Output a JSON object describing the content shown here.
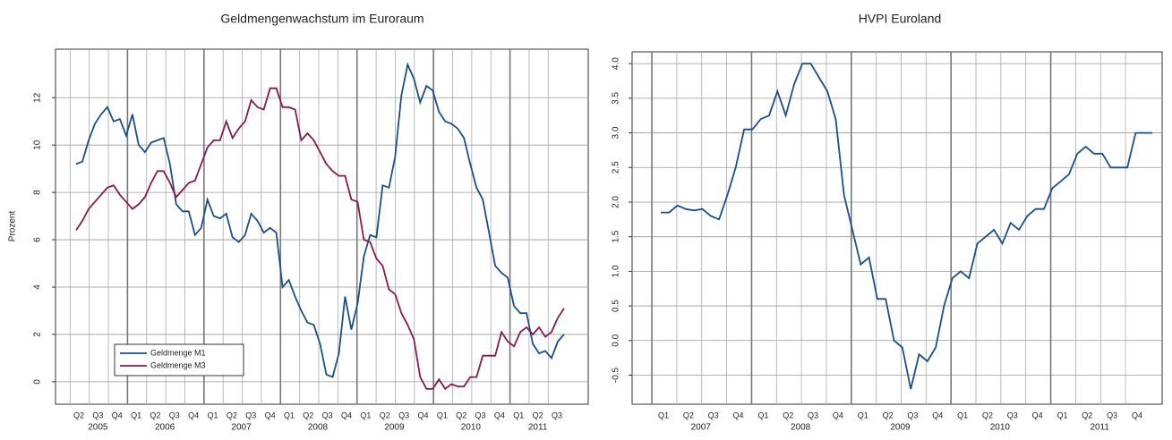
{
  "chart_data": [
    {
      "type": "line",
      "title": "Geldmengenwachstum im Euroraum",
      "y_label": "Prozent",
      "quarters": [
        "Q2",
        "Q3",
        "Q4",
        "Q1",
        "Q2",
        "Q3",
        "Q4",
        "Q1",
        "Q2",
        "Q3",
        "Q4",
        "Q1",
        "Q2",
        "Q3",
        "Q4",
        "Q1",
        "Q2",
        "Q3",
        "Q4",
        "Q1",
        "Q2",
        "Q3",
        "Q4",
        "Q1",
        "Q2",
        "Q3"
      ],
      "years": [
        "2005",
        "2006",
        "2007",
        "2008",
        "2009",
        "2010",
        "2011"
      ],
      "series": [
        {
          "name": "Geldmenge M1",
          "color": "#1a4f8a",
          "values": [
            9.2,
            9.3,
            10.2,
            10.9,
            11.3,
            11.6,
            11.0,
            11.1,
            10.4,
            11.3,
            10.0,
            9.7,
            10.1,
            10.2,
            10.3,
            9.2,
            7.5,
            7.2,
            7.2,
            6.2,
            6.5,
            7.7,
            7.0,
            6.9,
            7.1,
            6.1,
            5.9,
            6.2,
            7.1,
            6.8,
            6.3,
            6.5,
            6.3,
            4.0,
            4.3,
            3.6,
            3.0,
            2.5,
            2.4,
            1.6,
            0.3,
            0.2,
            1.2,
            3.6,
            2.2,
            3.3,
            5.3,
            6.2,
            6.1,
            8.3,
            8.2,
            9.5,
            12.1,
            13.4,
            12.8,
            11.8,
            12.5,
            12.3,
            11.4,
            11.0,
            10.9,
            10.7,
            10.3,
            9.2,
            8.2,
            7.7,
            6.3,
            4.9,
            4.6,
            4.4,
            3.2,
            2.9,
            2.9,
            1.6,
            1.2,
            1.3,
            1.0,
            1.7,
            2.0
          ]
        },
        {
          "name": "Geldmenge M3",
          "color": "#8b1a4a",
          "values": [
            6.4,
            6.8,
            7.3,
            7.6,
            7.9,
            8.2,
            8.3,
            7.9,
            7.6,
            7.3,
            7.5,
            7.8,
            8.4,
            8.9,
            8.9,
            8.4,
            7.8,
            8.1,
            8.4,
            8.5,
            9.2,
            9.9,
            10.2,
            10.2,
            11.0,
            10.3,
            10.7,
            11.0,
            11.9,
            11.6,
            11.5,
            12.4,
            12.4,
            11.6,
            11.6,
            11.5,
            10.2,
            10.5,
            10.2,
            9.7,
            9.2,
            8.9,
            8.7,
            8.7,
            7.7,
            7.6,
            6.0,
            5.9,
            5.2,
            4.9,
            3.9,
            3.7,
            2.9,
            2.4,
            1.8,
            0.2,
            -0.3,
            -0.3,
            0.1,
            -0.3,
            -0.1,
            -0.2,
            -0.2,
            0.2,
            0.2,
            1.1,
            1.1,
            1.1,
            2.1,
            1.7,
            1.5,
            2.1,
            2.3,
            2.0,
            2.3,
            1.9,
            2.1,
            2.7,
            3.1
          ]
        }
      ],
      "ylim": [
        -0.95,
        14.05
      ],
      "yticks": [
        0,
        2,
        4,
        6,
        8,
        10,
        12
      ],
      "grid": true,
      "legend": "lower left"
    },
    {
      "type": "line",
      "title": "HVPI Euroland",
      "quarters": [
        "Q1",
        "Q2",
        "Q3",
        "Q4",
        "Q1",
        "Q2",
        "Q3",
        "Q4",
        "Q1",
        "Q2",
        "Q3",
        "Q4",
        "Q1",
        "Q2",
        "Q3",
        "Q4",
        "Q1",
        "Q2",
        "Q3",
        "Q4"
      ],
      "years": [
        "2007",
        "2008",
        "2009",
        "2010",
        "2011"
      ],
      "color": "#1a4f8a",
      "values": [
        1.85,
        1.85,
        1.95,
        1.9,
        1.88,
        1.9,
        1.8,
        1.75,
        2.1,
        2.5,
        3.05,
        3.05,
        3.2,
        3.25,
        3.6,
        3.25,
        3.7,
        4.0,
        4.0,
        3.8,
        3.6,
        3.2,
        2.1,
        1.6,
        1.1,
        1.2,
        0.6,
        0.6,
        0.0,
        -0.1,
        -0.7,
        -0.2,
        -0.3,
        -0.1,
        0.5,
        0.9,
        1.0,
        0.9,
        1.4,
        1.5,
        1.6,
        1.4,
        1.7,
        1.6,
        1.8,
        1.9,
        1.9,
        2.2,
        2.3,
        2.4,
        2.7,
        2.8,
        2.7,
        2.7,
        2.5,
        2.5,
        2.5,
        3.0,
        3.0,
        3.0
      ],
      "ylim": [
        -0.92,
        4.17
      ],
      "yticks": [
        -0.5,
        {
          "value": 0,
          "label": "0.0"
        },
        0.5,
        {
          "value": 1,
          "label": "1.0"
        },
        1.5,
        {
          "value": 2,
          "label": "2.0"
        },
        2.5,
        {
          "value": 3,
          "label": "3.0"
        },
        3.5,
        {
          "value": 4,
          "label": "4.0"
        }
      ],
      "grid": true
    }
  ]
}
